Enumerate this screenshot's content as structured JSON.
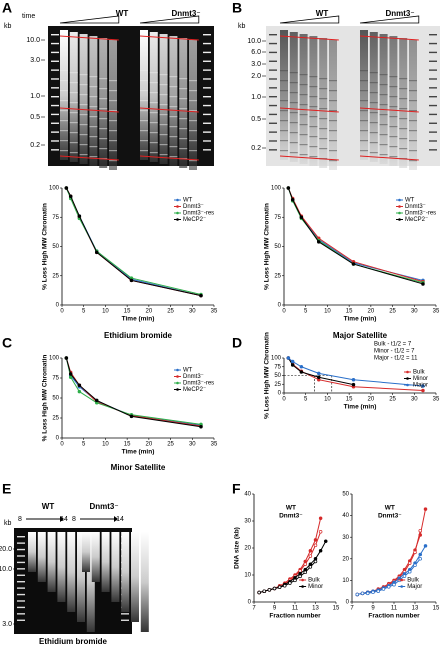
{
  "panel_labels": [
    "A",
    "B",
    "C",
    "D",
    "E",
    "F"
  ],
  "gels": [
    {
      "unit": "kb",
      "time_label": "time",
      "groups": [
        "WT",
        "Dnmt3⁻"
      ],
      "markers": [
        "10.0",
        "3.0",
        "1.0",
        "0.5",
        "0.2"
      ]
    },
    {
      "unit": "kb",
      "groups": [
        "WT",
        "Dnmt3⁻"
      ],
      "markers": [
        "10.0",
        "6.0",
        "3.0",
        "2.0",
        "1.0",
        "0.5",
        "0.2"
      ]
    },
    {
      "unit": "kb",
      "groups": [
        "WT",
        "Dnmt3⁻"
      ],
      "fractions": [
        "8",
        "14",
        "8",
        "14"
      ],
      "markers": [
        "20.0",
        "10.0",
        "3.0"
      ],
      "caption": "Ethidium bromide"
    }
  ],
  "chart_data": [
    {
      "type": "line",
      "title": "Ethidium bromide",
      "xlabel": "Time (min)",
      "ylabel": "% Loss High MW Chromatin",
      "x": [
        1,
        2,
        4,
        8,
        16,
        32
      ],
      "xlim": [
        0,
        35
      ],
      "xticks": [
        0,
        5,
        10,
        15,
        20,
        25,
        30,
        35
      ],
      "ylim": [
        0,
        100
      ],
      "yticks": [
        0,
        25,
        50,
        75,
        100
      ],
      "legend": "upper right",
      "series": [
        {
          "name": "WT",
          "color": "#2a6fc9",
          "values": [
            100,
            92,
            76,
            46,
            22,
            8
          ]
        },
        {
          "name": "Dnmt3⁻",
          "color": "#d62a2a",
          "values": [
            100,
            93,
            75,
            45,
            21,
            8
          ]
        },
        {
          "name": "Dnmt3⁻-res",
          "color": "#2fae4a",
          "values": [
            100,
            91,
            74,
            46,
            23,
            9
          ]
        },
        {
          "name": "MeCP2⁻",
          "color": "#000000",
          "values": [
            100,
            93,
            76,
            45,
            21,
            8
          ]
        }
      ]
    },
    {
      "type": "line",
      "title": "Major Satellite",
      "xlabel": "Time (min)",
      "ylabel": "% Loss High MW Chromatin",
      "x": [
        1,
        2,
        4,
        8,
        16,
        32
      ],
      "xlim": [
        0,
        35
      ],
      "xticks": [
        0,
        5,
        10,
        15,
        20,
        25,
        30,
        35
      ],
      "ylim": [
        0,
        100
      ],
      "yticks": [
        0,
        25,
        50,
        75,
        100
      ],
      "legend": "upper right",
      "series": [
        {
          "name": "WT",
          "color": "#2a6fc9",
          "values": [
            100,
            90,
            75,
            56,
            36,
            21
          ]
        },
        {
          "name": "Dnmt3⁻",
          "color": "#d62a2a",
          "values": [
            100,
            91,
            76,
            57,
            37,
            20
          ]
        },
        {
          "name": "Dnmt3⁻-res",
          "color": "#2fae4a",
          "values": [
            100,
            89,
            74,
            55,
            35,
            19
          ]
        },
        {
          "name": "MeCP2⁻",
          "color": "#000000",
          "values": [
            100,
            90,
            75,
            54,
            35,
            18
          ]
        }
      ]
    },
    {
      "type": "line",
      "title": "Minor Satellite",
      "xlabel": "Time (min)",
      "ylabel": "% Loss High MW Chromatin",
      "x": [
        1,
        2,
        4,
        8,
        16,
        32
      ],
      "xlim": [
        0,
        35
      ],
      "xticks": [
        0,
        5,
        10,
        15,
        20,
        25,
        30,
        35
      ],
      "ylim": [
        0,
        100
      ],
      "yticks": [
        0,
        25,
        50,
        75,
        100
      ],
      "legend": "upper right",
      "series": [
        {
          "name": "WT",
          "color": "#2a6fc9",
          "values": [
            100,
            78,
            64,
            46,
            28,
            16
          ]
        },
        {
          "name": "Dnmt3⁻",
          "color": "#d62a2a",
          "values": [
            100,
            82,
            66,
            45,
            28,
            15
          ]
        },
        {
          "name": "Dnmt3⁻-res",
          "color": "#2fae4a",
          "values": [
            100,
            76,
            58,
            44,
            29,
            17
          ]
        },
        {
          "name": "MeCP2⁻",
          "color": "#000000",
          "values": [
            100,
            80,
            66,
            47,
            27,
            14
          ]
        }
      ]
    },
    {
      "type": "line",
      "xlabel": "Time (min)",
      "ylabel": "% Loss High MW Chromatin",
      "x": [
        1,
        2,
        4,
        8,
        16,
        32
      ],
      "xlim": [
        0,
        35
      ],
      "xticks": [
        0,
        5,
        10,
        15,
        20,
        25,
        30,
        35
      ],
      "ylim": [
        0,
        100
      ],
      "yticks": [
        0,
        25,
        50,
        75,
        100
      ],
      "legend": "right",
      "annotations": [
        "Bulk - t1/2 = 7",
        "Minor - t1/2 = 7",
        "Major - t1/2 = 11"
      ],
      "reference_lines": {
        "y": 50,
        "x": [
          7,
          11
        ]
      },
      "series": [
        {
          "name": "Bulk",
          "color": "#d62a2a",
          "values": [
            100,
            82,
            62,
            38,
            18,
            7
          ]
        },
        {
          "name": "Minor",
          "color": "#000000",
          "values": [
            100,
            80,
            60,
            45,
            24,
            null
          ]
        },
        {
          "name": "Major",
          "color": "#2a6fc9",
          "values": [
            100,
            90,
            75,
            56,
            38,
            20
          ]
        }
      ]
    },
    {
      "type": "line",
      "xlabel": "Fraction number",
      "ylabel": "DNA size (kb)",
      "x": [
        7.5,
        8,
        8.5,
        9,
        9.5,
        10,
        10.5,
        11,
        11.5,
        12,
        12.5,
        13,
        13.5,
        14
      ],
      "xlim": [
        7,
        15
      ],
      "xticks": [
        7,
        9,
        11,
        13,
        15
      ],
      "ylim": [
        0,
        40
      ],
      "yticks": [
        0,
        10,
        20,
        30,
        40
      ],
      "legend": "lower right",
      "annotations": [
        "WT",
        "Dnmt3⁻"
      ],
      "series": [
        {
          "name": "Bulk",
          "color": "#d62a2a",
          "marker": "filled",
          "values": [
            3.5,
            4,
            4.5,
            5,
            6,
            7,
            8.5,
            10,
            12,
            15,
            19,
            23,
            31,
            null
          ]
        },
        {
          "color": "#d62a2a",
          "marker": "open",
          "values": [
            3.5,
            4,
            4.5,
            5,
            5.5,
            6.5,
            8,
            9.5,
            11.5,
            14,
            17,
            21,
            26,
            null
          ]
        },
        {
          "name": "Minor",
          "color": "#000000",
          "marker": "filled",
          "values": [
            3.5,
            4,
            4.5,
            5,
            5.5,
            6.5,
            7.5,
            9,
            10.5,
            12,
            14,
            16,
            19,
            22.5
          ]
        },
        {
          "color": "#000000",
          "marker": "open",
          "values": [
            3.5,
            4,
            4.5,
            5,
            5.5,
            6,
            7,
            8,
            9.5,
            11,
            13,
            15,
            null,
            null
          ]
        }
      ]
    },
    {
      "type": "line",
      "xlabel": "Fraction number",
      "x": [
        7.5,
        8,
        8.5,
        9,
        9.5,
        10,
        10.5,
        11,
        11.5,
        12,
        12.5,
        13,
        13.5,
        14
      ],
      "xlim": [
        7,
        15
      ],
      "xticks": [
        7,
        9,
        11,
        13,
        15
      ],
      "ylim": [
        0,
        50
      ],
      "yticks": [
        0,
        10,
        20,
        30,
        40,
        50
      ],
      "legend": "lower right",
      "annotations": [
        "WT",
        "Dnmt3⁻"
      ],
      "series": [
        {
          "name": "Bulk",
          "color": "#d62a2a",
          "marker": "filled",
          "values": [
            3.5,
            4,
            4.5,
            5,
            6,
            7,
            8.5,
            10,
            12,
            15,
            19,
            24,
            31,
            43
          ]
        },
        {
          "color": "#d62a2a",
          "marker": "open",
          "values": [
            3.5,
            4,
            4.5,
            5,
            5.5,
            6.5,
            8,
            9.5,
            11.5,
            14,
            18,
            23,
            33,
            null
          ]
        },
        {
          "name": "Major",
          "color": "#2a6fc9",
          "marker": "filled",
          "values": [
            3.5,
            4,
            4.5,
            5,
            5.5,
            6.5,
            7.5,
            9,
            11,
            13,
            15,
            18,
            22,
            26
          ]
        },
        {
          "color": "#2a6fc9",
          "marker": "open",
          "values": [
            3.5,
            4,
            4,
            4.5,
            5,
            6,
            7,
            8,
            10,
            12,
            14,
            17,
            20,
            null
          ]
        }
      ]
    }
  ]
}
